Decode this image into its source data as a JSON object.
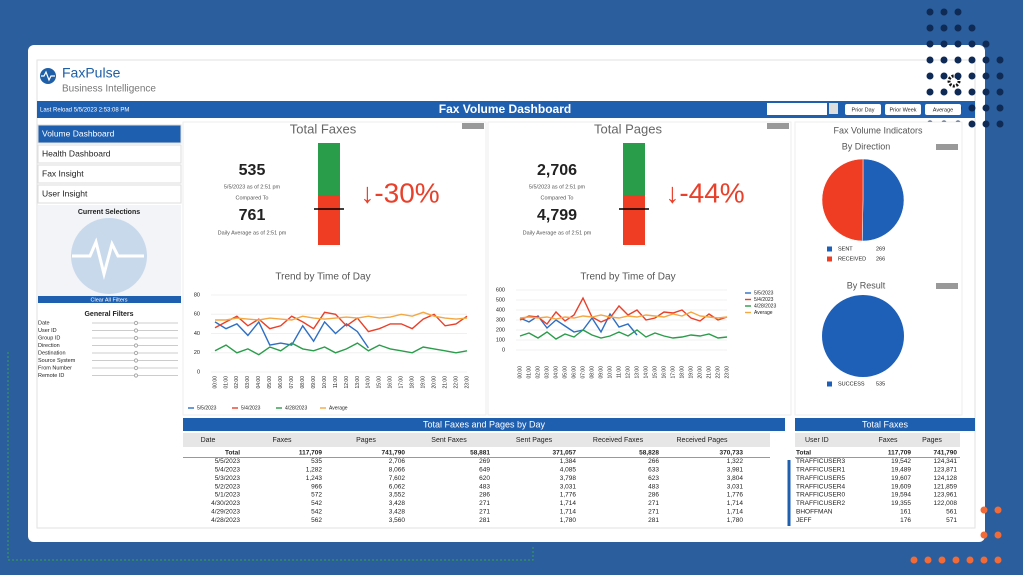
{
  "header": {
    "brand": "FaxPulse",
    "subtitle": "Business Intelligence"
  },
  "toolbar": {
    "last_reload": "Last Reload 5/5/2023 2:53:08 PM",
    "title": "Fax Volume Dashboard",
    "buttons": [
      "Prior Day",
      "Prior Week",
      "Average"
    ]
  },
  "nav": [
    "Volume Dashboard",
    "Health Dashboard",
    "Fax Insight",
    "User Insight"
  ],
  "selections": {
    "title": "Current Selections",
    "clear": "Clear All Filters"
  },
  "filters": {
    "title": "General Filters",
    "items": [
      "Date",
      "User ID",
      "Group ID",
      "Direction",
      "Destination",
      "Source System",
      "From Number",
      "Remote ID"
    ]
  },
  "kpis": [
    {
      "title": "Total Faxes",
      "value": "535",
      "value_caption": "5/5/2023 as of 2:51 pm",
      "compared": "Compared To",
      "baseline": "761",
      "baseline_caption": "Daily Average as of 2:51 pm",
      "change": "↓-30%"
    },
    {
      "title": "Total Pages",
      "value": "2,706",
      "value_caption": "5/5/2023 as of 2:51 pm",
      "compared": "Compared To",
      "baseline": "4,799",
      "baseline_caption": "Daily Average as of 2:51 pm",
      "change": "↓-44%"
    }
  ],
  "trend_charts": [
    {
      "type": "line",
      "title": "Trend by Time of Day",
      "categories": [
        "00:00",
        "01:00",
        "02:00",
        "03:00",
        "04:00",
        "05:00",
        "06:00",
        "07:00",
        "08:00",
        "09:00",
        "10:00",
        "11:00",
        "12:00",
        "13:00",
        "14:00",
        "15:00",
        "16:00",
        "17:00",
        "18:00",
        "19:00",
        "20:00",
        "21:00",
        "22:00",
        "23:00"
      ],
      "ylim": [
        0,
        80
      ],
      "yticks": [
        0,
        20,
        40,
        60,
        80
      ],
      "legend": "bottom",
      "series": [
        {
          "name": "5/5/2023",
          "color": "#2e6fc4",
          "values": [
            52,
            45,
            50,
            38,
            52,
            28,
            30,
            28,
            48,
            32,
            52,
            40,
            50,
            42,
            25,
            null,
            null,
            null,
            null,
            null,
            null,
            null,
            null,
            null
          ]
        },
        {
          "name": "5/4/2023",
          "color": "#e8402a",
          "values": [
            46,
            52,
            58,
            48,
            55,
            45,
            48,
            58,
            52,
            45,
            62,
            60,
            48,
            56,
            42,
            45,
            50,
            50,
            45,
            55,
            60,
            48,
            50,
            58
          ]
        },
        {
          "name": "4/28/2023",
          "color": "#2a9d4a",
          "values": [
            22,
            28,
            20,
            24,
            18,
            26,
            22,
            30,
            24,
            22,
            26,
            20,
            24,
            30,
            22,
            28,
            24,
            22,
            20,
            26,
            24,
            22,
            20,
            22
          ]
        },
        {
          "name": "Average",
          "color": "#f5a742",
          "values": [
            54,
            54,
            56,
            55,
            54,
            56,
            55,
            54,
            58,
            56,
            55,
            56,
            57,
            56,
            58,
            56,
            57,
            60,
            58,
            62,
            58,
            56,
            55,
            56
          ]
        }
      ]
    },
    {
      "type": "line",
      "title": "Trend by Time of Day",
      "categories": [
        "00:00",
        "01:00",
        "02:00",
        "03:00",
        "04:00",
        "05:00",
        "06:00",
        "07:00",
        "08:00",
        "09:00",
        "10:00",
        "11:00",
        "12:00",
        "13:00",
        "14:00",
        "15:00",
        "16:00",
        "17:00",
        "18:00",
        "19:00",
        "20:00",
        "21:00",
        "22:00",
        "23:00"
      ],
      "ylim": [
        0,
        600
      ],
      "yticks": [
        0,
        100,
        200,
        300,
        400,
        500,
        600
      ],
      "legend": "top-right",
      "series": [
        {
          "name": "5/5/2023",
          "color": "#2e6fc4",
          "values": [
            320,
            280,
            340,
            220,
            300,
            240,
            180,
            200,
            320,
            180,
            360,
            230,
            260,
            150,
            null,
            null,
            null,
            null,
            null,
            null,
            null,
            null,
            null,
            null
          ]
        },
        {
          "name": "5/4/2023",
          "color": "#e8402a",
          "values": [
            300,
            340,
            330,
            260,
            380,
            290,
            350,
            520,
            330,
            280,
            320,
            440,
            350,
            400,
            300,
            320,
            380,
            370,
            400,
            320,
            290,
            360,
            300,
            330
          ]
        },
        {
          "name": "4/28/2023",
          "color": "#2a9d4a",
          "values": [
            140,
            170,
            120,
            180,
            110,
            160,
            130,
            200,
            150,
            120,
            140,
            180,
            140,
            200,
            130,
            170,
            140,
            120,
            130,
            150,
            140,
            160,
            120,
            130
          ]
        },
        {
          "name": "Average",
          "color": "#f5a742",
          "values": [
            320,
            330,
            320,
            330,
            310,
            330,
            320,
            340,
            330,
            350,
            330,
            320,
            340,
            330,
            350,
            340,
            330,
            360,
            340,
            380,
            340,
            330,
            320,
            330
          ]
        }
      ]
    }
  ],
  "indicators": {
    "title": "Fax Volume Indicators",
    "charts": [
      {
        "type": "pie",
        "title": "By Direction",
        "categories": [
          "SENT",
          "RECEIVED"
        ],
        "values": [
          269,
          266
        ],
        "colors": [
          "#1e5fb8",
          "#ee3d23"
        ]
      },
      {
        "type": "pie",
        "title": "By Result",
        "categories": [
          "SUCCESS"
        ],
        "values": [
          535
        ],
        "colors": [
          "#1e5fb8"
        ]
      }
    ]
  },
  "day_table": {
    "title": "Total Faxes and Pages by Day",
    "columns": [
      "Date",
      "Faxes",
      "Pages",
      "Sent Faxes",
      "Sent Pages",
      "Received Faxes",
      "Received Pages"
    ],
    "rows": [
      [
        "Total",
        "117,709",
        "741,790",
        "58,881",
        "371,057",
        "58,828",
        "370,733"
      ],
      [
        "5/5/2023",
        "535",
        "2,706",
        "269",
        "1,384",
        "266",
        "1,322"
      ],
      [
        "5/4/2023",
        "1,282",
        "8,066",
        "649",
        "4,085",
        "633",
        "3,981"
      ],
      [
        "5/3/2023",
        "1,243",
        "7,602",
        "620",
        "3,798",
        "623",
        "3,804"
      ],
      [
        "5/2/2023",
        "966",
        "6,062",
        "483",
        "3,031",
        "483",
        "3,031"
      ],
      [
        "5/1/2023",
        "572",
        "3,552",
        "286",
        "1,776",
        "286",
        "1,776"
      ],
      [
        "4/30/2023",
        "542",
        "3,428",
        "271",
        "1,714",
        "271",
        "1,714"
      ],
      [
        "4/29/2023",
        "542",
        "3,428",
        "271",
        "1,714",
        "271",
        "1,714"
      ],
      [
        "4/28/2023",
        "562",
        "3,560",
        "281",
        "1,780",
        "281",
        "1,780"
      ]
    ]
  },
  "user_table": {
    "title": "Total Faxes",
    "columns": [
      "User ID",
      "Faxes",
      "Pages"
    ],
    "rows": [
      [
        "Total",
        "117,709",
        "741,790"
      ],
      [
        "TRAFFICUSER3",
        "19,542",
        "124,341"
      ],
      [
        "TRAFFICUSER1",
        "19,489",
        "123,871"
      ],
      [
        "TRAFFICUSER5",
        "19,607",
        "124,128"
      ],
      [
        "TRAFFICUSER4",
        "19,609",
        "121,859"
      ],
      [
        "TRAFFICUSER0",
        "19,594",
        "123,961"
      ],
      [
        "TRAFFICUSER2",
        "19,355",
        "122,008"
      ],
      [
        "BHOFFMAN",
        "161",
        "561"
      ],
      [
        "JEFF",
        "176",
        "571"
      ]
    ]
  }
}
